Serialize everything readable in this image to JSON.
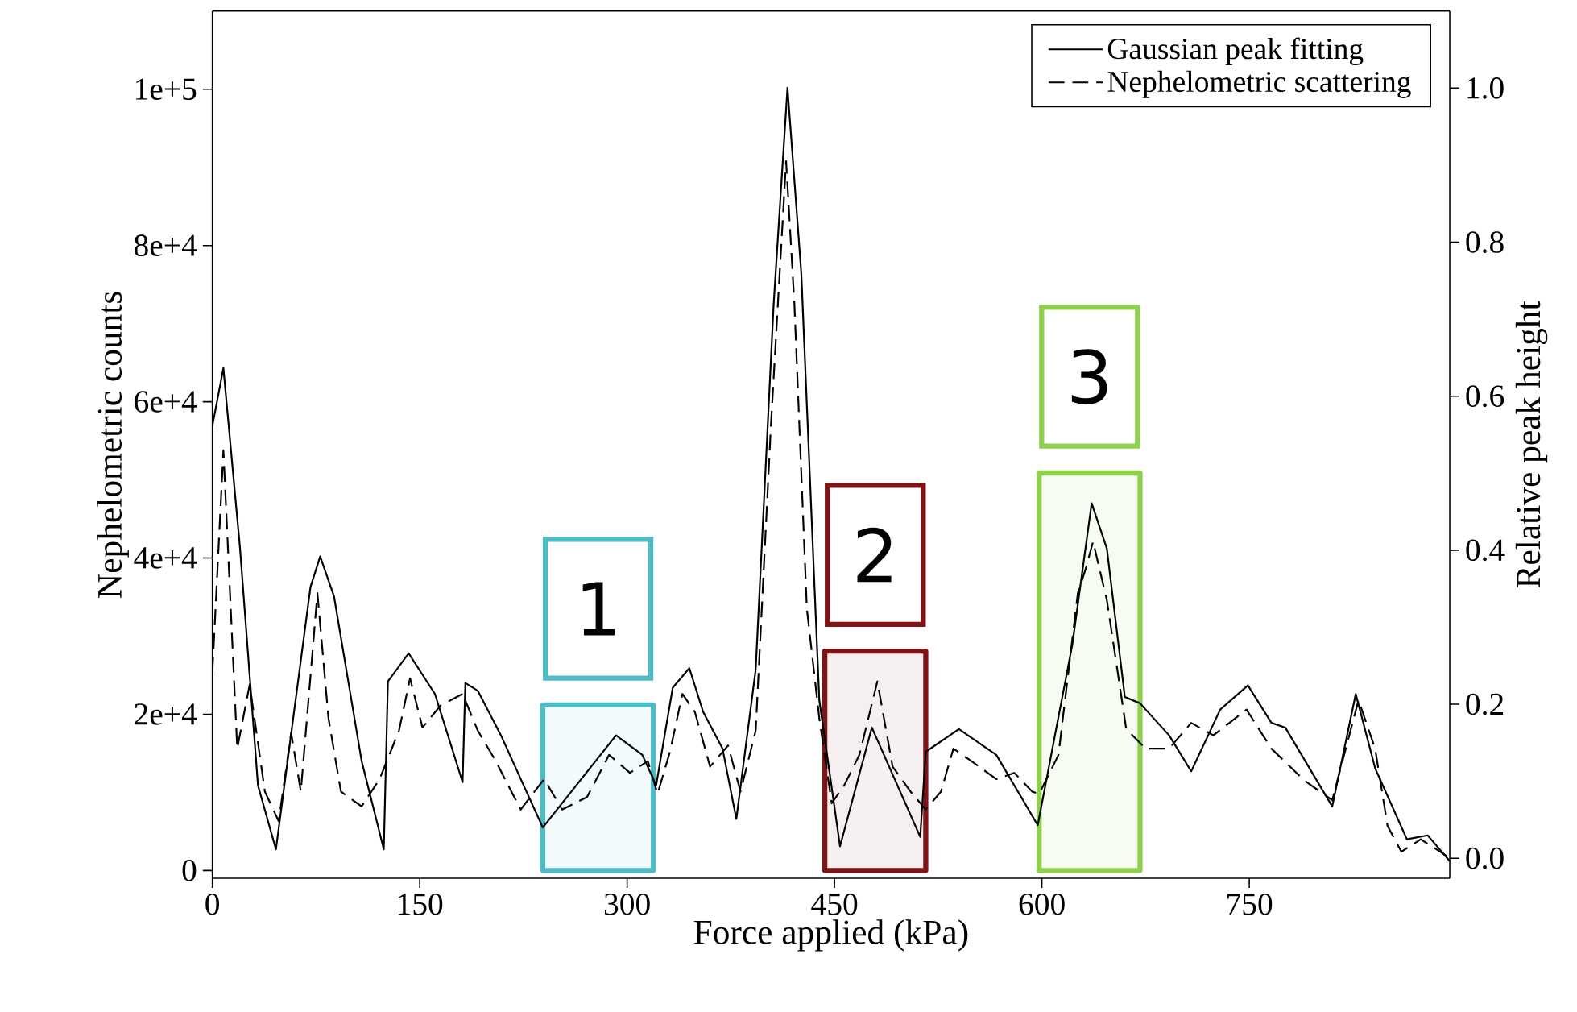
{
  "chart_data": {
    "type": "line",
    "xlabel": "Force applied (kPa)",
    "ylabel": "Nephelometric counts",
    "y2label": "Relative peak height",
    "xlim": [
      0,
      895
    ],
    "xticks": [
      0,
      150,
      300,
      450,
      600,
      750
    ],
    "ylim": [
      -1000,
      110000
    ],
    "yticks": [
      0,
      {
        "value": 20000,
        "label": "2e+4"
      },
      {
        "value": 40000,
        "label": "4e+4"
      },
      {
        "value": 60000,
        "label": "6e+4"
      },
      {
        "value": 80000,
        "label": "8e+4"
      },
      {
        "value": 100000,
        "label": "1e+5"
      }
    ],
    "y2lim": [
      -0.026,
      1.1
    ],
    "y2ticks": [
      {
        "value": 0,
        "label": "0.0"
      },
      {
        "value": 0.2,
        "label": "0.2"
      },
      {
        "value": 0.4,
        "label": "0.4"
      },
      {
        "value": 0.6,
        "label": "0.6"
      },
      {
        "value": 0.8,
        "label": "0.8"
      },
      {
        "value": 1,
        "label": "1.0"
      }
    ],
    "legend": "top right",
    "series": [
      {
        "name": "Gaussian peak fitting",
        "color": "#000000",
        "line_style": "solid",
        "x": [
          0,
          8,
          20,
          33,
          46,
          71,
          78,
          88,
          108,
          124,
          127,
          142,
          161,
          181,
          183,
          192,
          209,
          239,
          292,
          311,
          321,
          333,
          345,
          355,
          369,
          379,
          393,
          406,
          416,
          426,
          439,
          454,
          477,
          512,
          516,
          540,
          567,
          597,
          622,
          636,
          647,
          660,
          671,
          692,
          708,
          729,
          749,
          766,
          776,
          810,
          827,
          841,
          864,
          879,
          895
        ],
        "values": [
          56900,
          64300,
          41300,
          10900,
          2700,
          36300,
          40200,
          35100,
          14000,
          2700,
          24200,
          27800,
          22600,
          11300,
          24000,
          23000,
          17200,
          5500,
          17300,
          14800,
          10900,
          23400,
          25900,
          20300,
          15600,
          6600,
          25700,
          72500,
          100200,
          76400,
          21800,
          3100,
          18300,
          4300,
          15200,
          18100,
          14800,
          5800,
          28900,
          47000,
          41200,
          22200,
          21400,
          17300,
          12700,
          20600,
          23700,
          18900,
          18300,
          8200,
          22600,
          13100,
          4000,
          4500,
          1200
        ]
      },
      {
        "name": "Nephelometric scattering",
        "color": "#000000",
        "line_style": "dashed",
        "x": [
          0,
          8,
          18,
          27,
          38,
          48,
          57,
          64,
          76,
          84,
          93,
          108,
          121,
          135,
          143,
          152,
          165,
          181,
          192,
          205,
          223,
          240,
          253,
          271,
          287,
          302,
          315,
          322,
          331,
          340,
          349,
          360,
          373,
          382,
          393,
          404,
          415,
          421,
          430,
          439,
          448,
          457,
          468,
          481,
          492,
          505,
          516,
          527,
          536,
          549,
          567,
          580,
          593,
          598,
          612,
          626,
          632,
          637,
          647,
          661,
          675,
          692,
          708,
          724,
          748,
          766,
          790,
          810,
          829,
          841,
          850,
          860,
          874,
          895
        ],
        "values": [
          25300,
          53800,
          15600,
          23800,
          10100,
          6300,
          17600,
          10100,
          35500,
          19500,
          10100,
          8200,
          11700,
          17900,
          24600,
          18300,
          21100,
          22600,
          17900,
          14000,
          7800,
          11700,
          7800,
          9400,
          14800,
          12500,
          14000,
          9800,
          15200,
          22600,
          20300,
          13300,
          16000,
          10100,
          17900,
          56900,
          90800,
          72500,
          33500,
          19500,
          8600,
          10900,
          14800,
          24200,
          13300,
          10100,
          7800,
          10100,
          15600,
          14000,
          11700,
          12500,
          10100,
          9800,
          14800,
          35500,
          38800,
          42100,
          34600,
          18100,
          15600,
          15600,
          18900,
          17300,
          20600,
          15600,
          11500,
          9000,
          21800,
          15600,
          5700,
          2400,
          4000,
          1600
        ]
      }
    ],
    "bands": [
      {
        "axis": "x",
        "from": 239,
        "to": 319,
        "label": "1",
        "color": "#4dbcc4"
      },
      {
        "axis": "x",
        "from": 443,
        "to": 516,
        "label": "2",
        "color": "#7f1416"
      },
      {
        "axis": "x",
        "from": 598,
        "to": 671,
        "label": "3",
        "color": "#8fd14f"
      }
    ]
  }
}
